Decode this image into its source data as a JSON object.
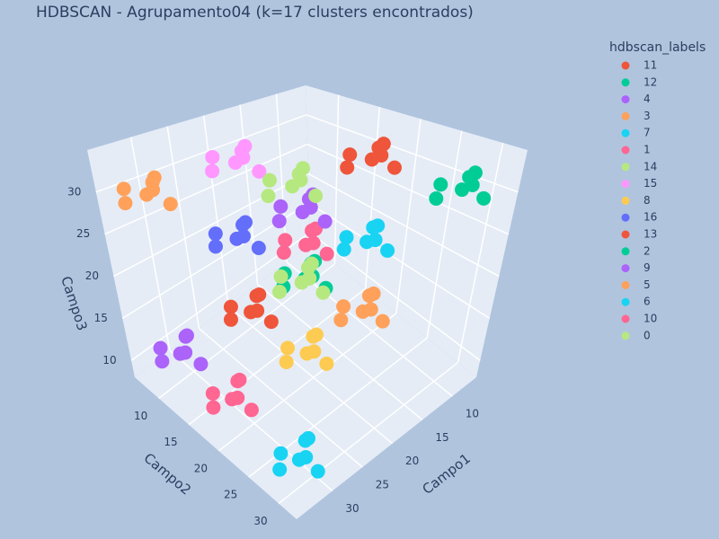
{
  "chart_data": {
    "type": "scatter3d",
    "title": "HDBSCAN - Agrupamento04 (k=17 clusters encontrados)",
    "x_label": "Campo1",
    "y_label": "Campo2",
    "z_label": "Campo3",
    "legend_title": "hdbscan_labels",
    "legend_position": "right",
    "xlim": [
      6,
      36
    ],
    "ylim": [
      6,
      33
    ],
    "zlim": [
      8,
      35
    ],
    "xticks": [
      10,
      15,
      20,
      25,
      30
    ],
    "yticks": [
      10,
      15,
      20,
      25,
      30
    ],
    "zticks": [
      10,
      15,
      20,
      25,
      30
    ],
    "grid": true,
    "series": [
      {
        "name": "11",
        "color": "#EF553B",
        "x": [
          11.4,
          13.2,
          9.9,
          12.3,
          9.4,
          12.6,
          10.6
        ],
        "y": [
          19.2,
          18,
          20.8,
          21.1,
          18.2,
          17.2,
          19.8
        ],
        "z": [
          31,
          31.8,
          30,
          32.5,
          31.5,
          29.6,
          33
        ]
      },
      {
        "name": "12",
        "color": "#00CC96",
        "x": [
          8.7,
          10.5,
          7.2,
          9.6,
          6.7,
          9.9,
          7.9
        ],
        "y": [
          28.4,
          27.2,
          30,
          30.3,
          27.4,
          26.4,
          29
        ],
        "z": [
          29.6,
          30.4,
          28.6,
          31.1,
          30.1,
          28.2,
          31.6
        ]
      },
      {
        "name": "4",
        "color": "#AB63FA",
        "x": [
          21.9,
          23.7,
          20.4,
          22.8,
          19.9,
          23.1,
          21.1
        ],
        "y": [
          20,
          18.8,
          21.6,
          21.9,
          19,
          18,
          20.6
        ],
        "z": [
          28.3,
          29.1,
          27.3,
          29.8,
          28.8,
          26.9,
          30.3
        ]
      },
      {
        "name": "3",
        "color": "#FFA15A",
        "x": [
          32.1,
          33.9,
          30.6,
          33,
          30.1,
          33.3,
          31.3
        ],
        "y": [
          9,
          7.8,
          10.6,
          10.9,
          8,
          7,
          9.6
        ],
        "z": [
          29.6,
          30.4,
          28.6,
          31.1,
          30.1,
          28.2,
          31.6
        ]
      },
      {
        "name": "7",
        "color": "#19D3F3",
        "x": [
          12.9,
          14.7,
          11.4,
          13.8,
          10.9,
          14.1,
          12.1
        ],
        "y": [
          20.6,
          19.4,
          22.2,
          22.5,
          19.6,
          18.6,
          21.2
        ],
        "z": [
          21.5,
          22.3,
          20.5,
          23,
          22,
          20.1,
          23.5
        ]
      },
      {
        "name": "1",
        "color": "#FF6692",
        "x": [
          18,
          19.8,
          16.5,
          18.9,
          16,
          19.2,
          17.2
        ],
        "y": [
          16.8,
          15.6,
          18.4,
          18.7,
          15.8,
          14.8,
          17.4
        ],
        "z": [
          21.5,
          22.3,
          20.5,
          23,
          22,
          20.1,
          23.5
        ]
      },
      {
        "name": "14",
        "color": "#B6E880",
        "x": [
          24.3,
          26.1,
          22.8,
          25.2,
          22.3,
          25.5,
          23.5
        ],
        "y": [
          20.9,
          19.7,
          22.5,
          22.8,
          19.9,
          18.9,
          21.5
        ],
        "z": [
          32.3,
          33.1,
          31.3,
          33.8,
          32.8,
          30.9,
          34.3
        ]
      },
      {
        "name": "15",
        "color": "#FF97FF",
        "x": [
          23.6,
          25.4,
          22.1,
          24.5,
          21.6,
          24.8,
          22.8
        ],
        "y": [
          13,
          11.8,
          14.6,
          14.9,
          12,
          11,
          13.6
        ],
        "z": [
          32.3,
          33.1,
          31.3,
          33.8,
          32.8,
          30.9,
          34.3
        ]
      },
      {
        "name": "8",
        "color": "#FECB52",
        "x": [
          24.6,
          26.4,
          23.1,
          25.5,
          22.6,
          25.8,
          23.8
        ],
        "y": [
          23.3,
          22.1,
          24.9,
          25.2,
          22.3,
          21.3,
          23.9
        ],
        "z": [
          14.8,
          15.6,
          13.8,
          16.3,
          15.3,
          13.4,
          16.8
        ]
      },
      {
        "name": "16",
        "color": "#636EFA",
        "x": [
          24,
          25.8,
          22.5,
          24.9,
          22,
          25.2,
          23.2
        ],
        "y": [
          12.8,
          11.6,
          14.4,
          14.7,
          11.8,
          10.8,
          13.4
        ],
        "z": [
          22.9,
          23.7,
          21.9,
          24.4,
          23.4,
          21.5,
          24.9
        ]
      },
      {
        "name": "13",
        "color": "#EF553B",
        "x": [
          25.5,
          27.3,
          24,
          26.4,
          23.5,
          26.7,
          24.7
        ],
        "y": [
          15.7,
          14.5,
          17.3,
          17.6,
          14.7,
          13.7,
          16.3
        ],
        "z": [
          16.1,
          16.9,
          15.1,
          17.6,
          16.6,
          14.7,
          18.1
        ]
      },
      {
        "name": "2",
        "color": "#00CC96",
        "x": [
          21.3,
          23.1,
          19.8,
          22.2,
          19.3,
          22.5,
          20.5
        ],
        "y": [
          19.8,
          18.6,
          21.4,
          21.7,
          18.8,
          17.8,
          20.4
        ],
        "z": [
          20.2,
          21,
          19.2,
          21.7,
          20.7,
          18.8,
          22.2
        ]
      },
      {
        "name": "9",
        "color": "#AB63FA",
        "x": [
          33.8,
          35.6,
          32.3,
          34.7,
          31.8,
          35,
          33
        ],
        "y": [
          12.5,
          11.3,
          14.1,
          14.4,
          11.5,
          10.5,
          13.1
        ],
        "z": [
          13.4,
          14.2,
          12.4,
          14.9,
          13.9,
          12,
          15.4
        ]
      },
      {
        "name": "5",
        "color": "#FFA15A",
        "x": [
          18,
          19.8,
          16.5,
          18.9,
          16,
          19.2,
          17.2
        ],
        "y": [
          25.2,
          24,
          26.8,
          27.1,
          24.2,
          23.2,
          25.8
        ],
        "z": [
          17.5,
          18.3,
          16.5,
          19,
          18,
          16.1,
          19.5
        ]
      },
      {
        "name": "6",
        "color": "#19D3F3",
        "x": [
          32.1,
          33.9,
          30.6,
          33,
          30.1,
          33.3,
          31.3
        ],
        "y": [
          29.5,
          28.3,
          31.1,
          31.4,
          28.5,
          27.5,
          30.1
        ],
        "z": [
          10.2,
          11,
          9.2,
          11.7,
          10.7,
          8.8,
          12.2
        ]
      },
      {
        "name": "10",
        "color": "#FF6692",
        "x": [
          32.4,
          34.2,
          30.9,
          33.3,
          30.4,
          33.6,
          31.6
        ],
        "y": [
          19,
          17.8,
          20.6,
          20.9,
          18,
          17,
          19.6
        ],
        "z": [
          11.2,
          12,
          10.2,
          12.7,
          11.7,
          9.8,
          13.2
        ]
      },
      {
        "name": "0",
        "color": "#B6E880",
        "x": [
          25.5,
          27.3,
          24,
          26.4,
          23.5,
          26.7,
          24.7
        ],
        "y": [
          23.3,
          22.1,
          24.9,
          25.2,
          22.3,
          21.3,
          23.9
        ],
        "z": [
          22.9,
          23.7,
          21.9,
          24.4,
          23.4,
          21.5,
          24.9
        ]
      }
    ]
  }
}
